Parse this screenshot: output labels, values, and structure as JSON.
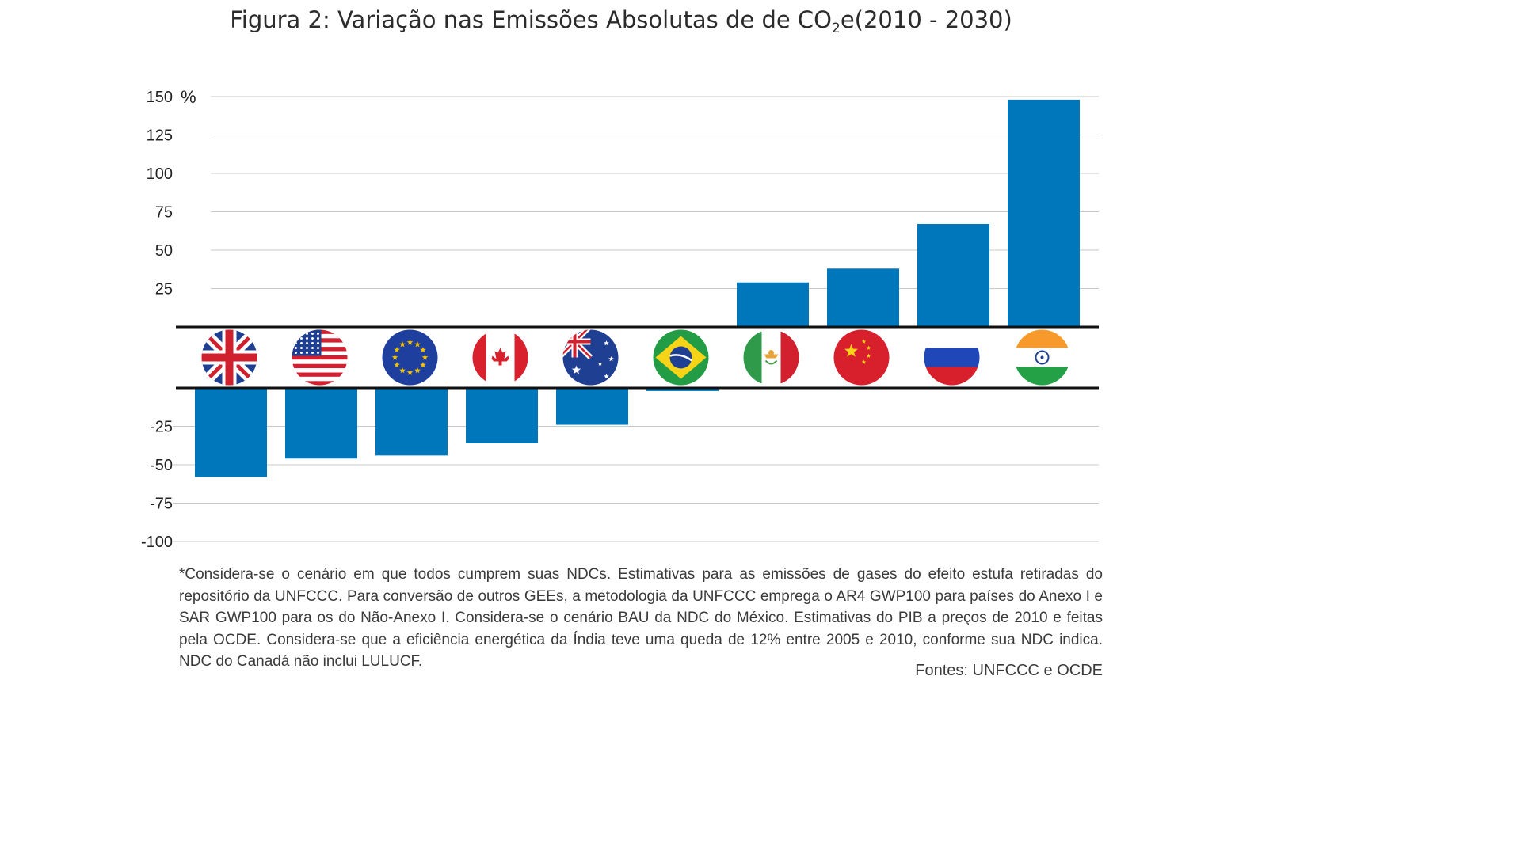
{
  "title": {
    "prefix": "Figura 2: Variação nas Emissões Absolutas de de CO",
    "subscript": "2",
    "suffix": "e(2010 - 2030)"
  },
  "chart_data": {
    "type": "bar",
    "title": "Figura 2: Variação nas Emissões Absolutas de de CO2e(2010 - 2030)",
    "ylabel": "%",
    "ylim": [
      -100,
      150
    ],
    "yticks": [
      "150",
      "125",
      "100",
      "75",
      "50",
      "25",
      "-25",
      "-50",
      "-75",
      "-100"
    ],
    "ytick_values": [
      150,
      125,
      100,
      75,
      50,
      25,
      -25,
      -50,
      -75,
      -100
    ],
    "grid": true,
    "bar_color": "#0077bb",
    "categories": [
      "uk-flag",
      "usa-flag",
      "eu-flag",
      "canada-flag",
      "australia-flag",
      "brazil-flag",
      "mexico-flag",
      "china-flag",
      "russia-flag",
      "india-flag"
    ],
    "values": [
      -58,
      -46,
      -44,
      -36,
      -24,
      -2,
      29,
      38,
      67,
      148
    ]
  },
  "footnote": "*Considera-se o cenário em que todos cumprem suas NDCs. Estimativas para as emissões de gases do efeito estufa retiradas do repositório da UNFCCC. Para conversão de outros GEEs, a metodologia da UNFCCC emprega o AR4 GWP100 para países do Anexo I e SAR GWP100 para os do Não-Anexo I. Considera-se o cenário BAU da NDC do México. Estimativas do PIB a preços de 2010 e feitas pela OCDE. Considera-se que a eficiência energética da Índia teve uma queda de 12% entre 2005 e 2010, conforme sua NDC indica. NDC do Canadá não inclui LULUCF.",
  "source": "Fontes: UNFCCC e OCDE"
}
